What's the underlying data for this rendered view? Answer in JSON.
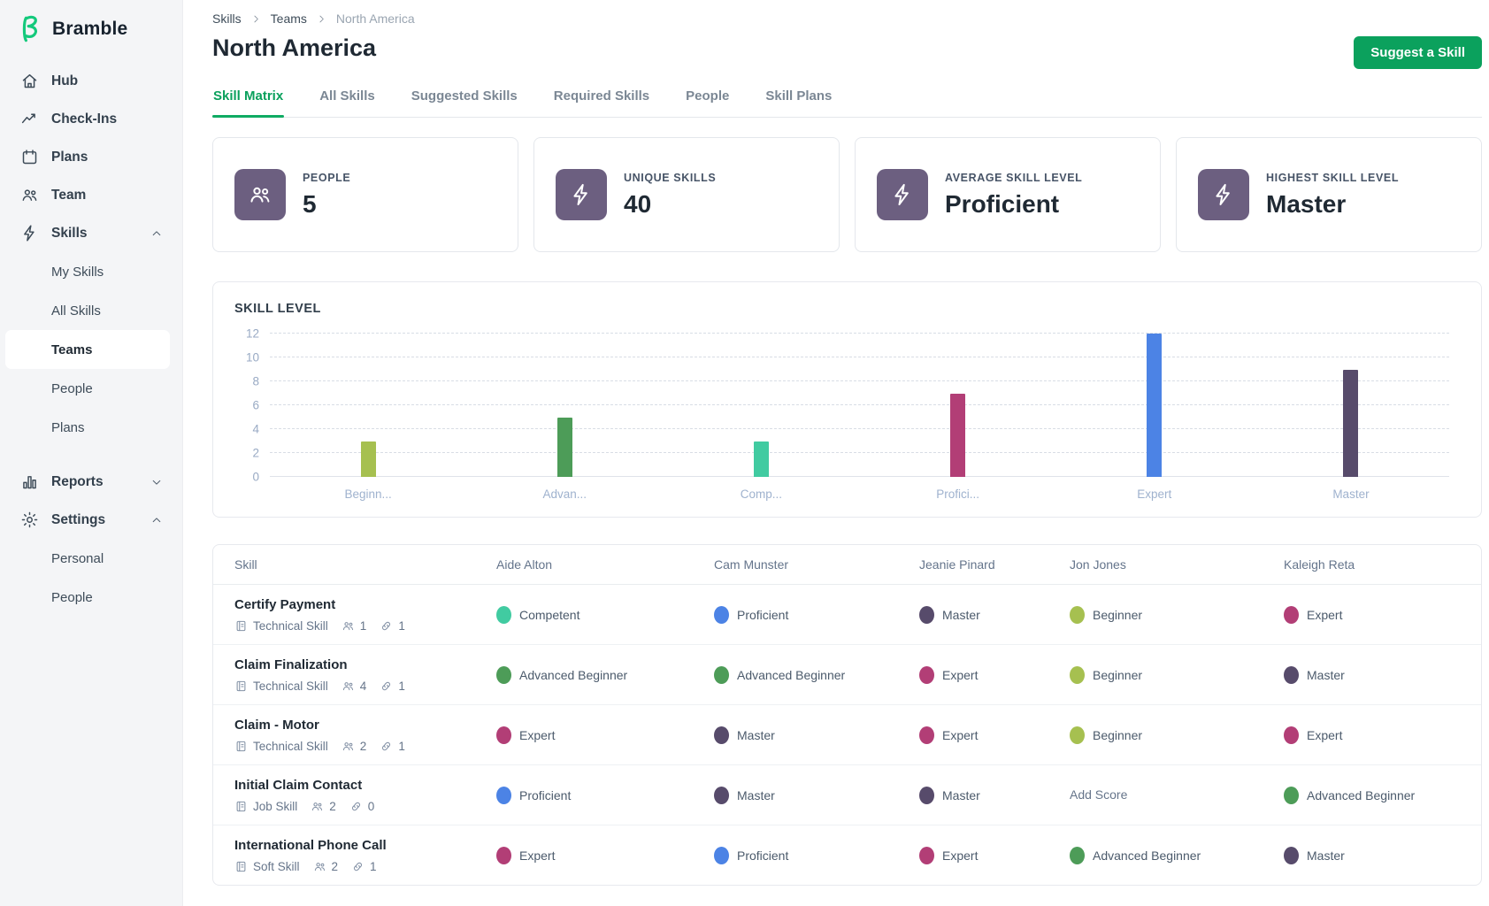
{
  "brand": {
    "name": "Bramble",
    "logo_color": "#14c97c"
  },
  "colors": {
    "accent_green": "#0ba15d",
    "stat_tile_purple": "#6c5f80",
    "sidebar_bg": "#f4f5f7"
  },
  "sidebar": {
    "items": [
      {
        "label": "Hub",
        "icon": "home",
        "type": "top"
      },
      {
        "label": "Check-Ins",
        "icon": "trend",
        "type": "top"
      },
      {
        "label": "Plans",
        "icon": "calendar",
        "type": "top"
      },
      {
        "label": "Team",
        "icon": "team",
        "type": "top"
      },
      {
        "label": "Skills",
        "icon": "bolt",
        "type": "top",
        "chevron": "up"
      },
      {
        "label": "My Skills",
        "type": "sub",
        "section": "skills"
      },
      {
        "label": "All Skills",
        "type": "sub",
        "section": "skills"
      },
      {
        "label": "Teams",
        "type": "sub",
        "section": "skills",
        "active": true
      },
      {
        "label": "People",
        "type": "sub",
        "section": "skills"
      },
      {
        "label": "Plans",
        "type": "sub",
        "section": "skills"
      },
      {
        "label": "Reports",
        "icon": "reports",
        "type": "top",
        "chevron": "down",
        "gap_before": true
      },
      {
        "label": "Settings",
        "icon": "gear",
        "type": "top",
        "chevron": "up"
      },
      {
        "label": "Personal",
        "type": "sub",
        "section": "settings"
      },
      {
        "label": "People",
        "type": "sub",
        "section": "settings"
      }
    ]
  },
  "header": {
    "breadcrumb": [
      "Skills",
      "Teams",
      "North America"
    ],
    "title": "North America",
    "suggest_button": "Suggest a Skill"
  },
  "tabs": {
    "items": [
      "Skill Matrix",
      "All Skills",
      "Suggested Skills",
      "Required Skills",
      "People",
      "Skill Plans"
    ],
    "active_index": 0
  },
  "stats": [
    {
      "label": "PEOPLE",
      "value": "5",
      "icon": "team"
    },
    {
      "label": "UNIQUE SKILLS",
      "value": "40",
      "icon": "bolt"
    },
    {
      "label": "AVERAGE SKILL LEVEL",
      "value": "Proficient",
      "icon": "bolt"
    },
    {
      "label": "HIGHEST SKILL LEVEL",
      "value": "Master",
      "icon": "bolt"
    }
  ],
  "chart_data": {
    "type": "bar",
    "title": "SKILL LEVEL",
    "categories": [
      "Beginner",
      "Advanced Beginner",
      "Competent",
      "Proficient",
      "Expert",
      "Master"
    ],
    "tick_labels": [
      "Beginn...",
      "Advan...",
      "Comp...",
      "Profici...",
      "Expert",
      "Master"
    ],
    "values": [
      3,
      5,
      3,
      7,
      12,
      9
    ],
    "bar_colors": [
      "#a6c050",
      "#4d9c58",
      "#41cba1",
      "#b23e76",
      "#4c83e5",
      "#574b6b"
    ],
    "ylim": [
      0,
      12
    ],
    "yticks": [
      0,
      2,
      4,
      6,
      8,
      10,
      12
    ],
    "grid": "horizontal-dashed",
    "legend": "none"
  },
  "level_colors": {
    "Beginner": "#a6c050",
    "Advanced Beginner": "#4d9c58",
    "Competent": "#41cba1",
    "Proficient": "#4c83e5",
    "Expert": "#b23e76",
    "Master": "#574b6b"
  },
  "matrix": {
    "columns": [
      "Skill",
      "Aide Alton",
      "Cam Munster",
      "Jeanie Pinard",
      "Jon Jones",
      "Kaleigh Reta"
    ],
    "add_score_label": "Add Score",
    "rows": [
      {
        "skill": "Certify Payment",
        "category": "Technical Skill",
        "people_count": "1",
        "link_count": "1",
        "scores": [
          "Competent",
          "Proficient",
          "Master",
          "Beginner",
          "Expert"
        ]
      },
      {
        "skill": "Claim Finalization",
        "category": "Technical Skill",
        "people_count": "4",
        "link_count": "1",
        "scores": [
          "Advanced Beginner",
          "Advanced Beginner",
          "Expert",
          "Beginner",
          "Master"
        ]
      },
      {
        "skill": "Claim - Motor",
        "category": "Technical Skill",
        "people_count": "2",
        "link_count": "1",
        "scores": [
          "Expert",
          "Master",
          "Expert",
          "Beginner",
          "Expert"
        ]
      },
      {
        "skill": "Initial Claim Contact",
        "category": "Job Skill",
        "people_count": "2",
        "link_count": "0",
        "scores": [
          "Proficient",
          "Master",
          "Master",
          null,
          "Advanced Beginner"
        ]
      },
      {
        "skill": "International Phone Call",
        "category": "Soft Skill",
        "people_count": "2",
        "link_count": "1",
        "scores": [
          "Expert",
          "Proficient",
          "Expert",
          "Advanced Beginner",
          "Master"
        ]
      }
    ]
  }
}
